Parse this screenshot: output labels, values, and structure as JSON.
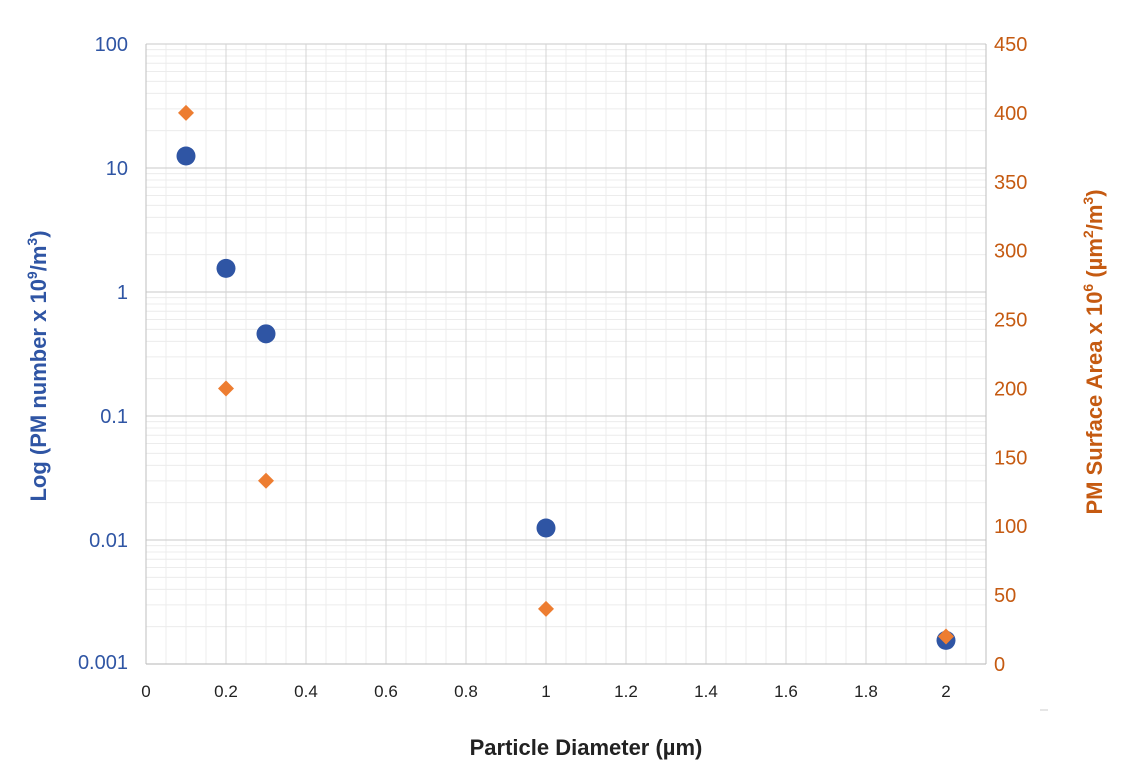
{
  "chart_data": {
    "type": "scatter",
    "xlabel": "Particle Diameter (µm)",
    "ylabel_left": {
      "text": "Log (PM number x 10",
      "sup1": "9",
      "text2": "/m",
      "sup2": "3",
      "text3": ")"
    },
    "ylabel_right": {
      "text": "PM Surface Area x 10",
      "sup1": "6",
      "text2": " (µm",
      "sup2": "2",
      "text3": "/m",
      "sup3": "3",
      "text4": ")"
    },
    "xlim": [
      0,
      2.1
    ],
    "x_ticks": [
      0,
      0.2,
      0.4,
      0.6,
      0.8,
      1,
      1.2,
      1.4,
      1.6,
      1.8,
      2
    ],
    "x_tick_labels": [
      "0",
      "0.2",
      "0.4",
      "0.6",
      "0.8",
      "1",
      "1.2",
      "1.4",
      "1.6",
      "1.8",
      "2"
    ],
    "y_left_scale": "log",
    "y_left_lim": [
      0.001,
      100
    ],
    "y_left_ticks": [
      0.001,
      0.01,
      0.1,
      1,
      10,
      100
    ],
    "y_left_tick_labels": [
      "0.001",
      "0.01",
      "0.1",
      "1",
      "10",
      "100"
    ],
    "y_right_lim": [
      0,
      450
    ],
    "y_right_ticks": [
      0,
      50,
      100,
      150,
      200,
      250,
      300,
      350,
      400,
      450
    ],
    "y_right_tick_labels": [
      "0",
      "50",
      "100",
      "150",
      "200",
      "250",
      "300",
      "350",
      "400",
      "450"
    ],
    "grid": true,
    "series": [
      {
        "axis": "left",
        "marker": "circle",
        "color": "#2f55a4",
        "x": [
          0.1,
          0.2,
          0.3,
          1,
          2
        ],
        "y": [
          12.5,
          1.55,
          0.46,
          0.0125,
          0.00155
        ]
      },
      {
        "axis": "right",
        "marker": "diamond",
        "color": "#ed7d31",
        "x": [
          0.1,
          0.2,
          0.3,
          1,
          2
        ],
        "y": [
          400,
          200,
          133,
          40,
          20
        ]
      }
    ],
    "colors": {
      "left_axis": "#2f55a4",
      "right_axis": "#c55a11",
      "grid_major": "#d4d4d4",
      "grid_minor": "#ececec",
      "x_title": "#222222"
    }
  }
}
